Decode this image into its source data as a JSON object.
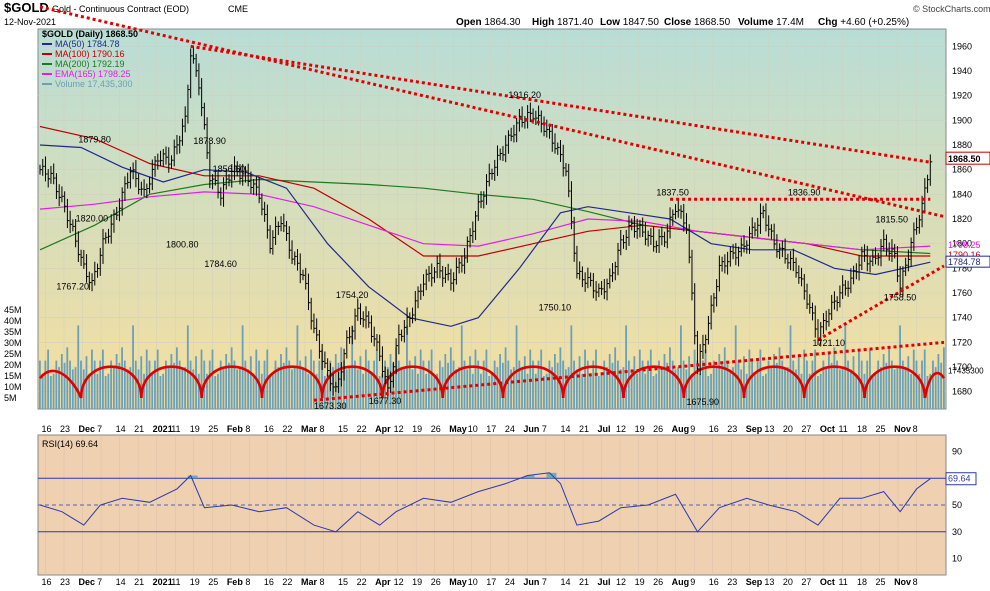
{
  "header": {
    "symbol": "$GOLD",
    "name": "Gold - Continuous Contract (EOD)",
    "exchange": "CME",
    "date": "12-Nov-2021",
    "open_label": "Open",
    "open": "1864.30",
    "high_label": "High",
    "high": "1871.40",
    "low_label": "Low",
    "low": "1847.50",
    "close_label": "Close",
    "close": "1868.50",
    "volume_label": "Volume",
    "volume": "17.4M",
    "chg_label": "Chg",
    "chg": "+4.60 (+0.25%)",
    "watermark": "© StockCharts.com"
  },
  "legend": [
    {
      "text": "$GOLD (Daily) 1868.50",
      "color": "#000000"
    },
    {
      "text": "MA(50) 1784.78",
      "color": "#1f2a8a"
    },
    {
      "text": "MA(100) 1790.16",
      "color": "#c00000"
    },
    {
      "text": "MA(200) 1792.19",
      "color": "#1f7a1f"
    },
    {
      "text": "EMA(165) 1798.25",
      "color": "#e020e0"
    },
    {
      "text": "Volume 17,435,300",
      "color": "#6aa0b8"
    }
  ],
  "rsi_legend": "RSI(14) 69.64",
  "x_tick_labels": [
    "16",
    "23",
    "Dec",
    "7",
    "14",
    "21",
    "2021",
    "11",
    "19",
    "25",
    "Feb",
    "8",
    "16",
    "22",
    "Mar",
    "8",
    "15",
    "22",
    "Apr",
    "12",
    "19",
    "26",
    "May",
    "10",
    "17",
    "24",
    "Jun",
    "7",
    "14",
    "21",
    "Jul",
    "12",
    "19",
    "26",
    "Aug",
    "9",
    "16",
    "23",
    "Sep",
    "13",
    "20",
    "27",
    "Oct",
    "11",
    "18",
    "25",
    "Nov",
    "8"
  ],
  "price_axis": [
    1960,
    1940,
    1920,
    1900,
    1880,
    1860,
    1840,
    1820,
    1800,
    1780,
    1760,
    1740,
    1720,
    1700,
    1680
  ],
  "volume_axis": [
    "45M",
    "40M",
    "35M",
    "30M",
    "25M",
    "20M",
    "15M",
    "10M",
    "5M"
  ],
  "rsi_axis": [
    90,
    70,
    50,
    30,
    10
  ],
  "right_labels": {
    "price": "1868.50",
    "ema": "1798.25",
    "ma100": "1790.16",
    "ma50": "1784.78",
    "vol": "17435300"
  },
  "rsi_value_label": "69.64",
  "colors": {
    "price_bg_top": "#b8ddd6",
    "price_bg_bottom": "#f7df9e",
    "rsi_bg": "#efd1b2",
    "bars": "#000000",
    "trend": "#e00000",
    "volume": "#6aa0b8",
    "rsi_line": "#2b3ba8",
    "rsi_fill": "#5aa0b0"
  },
  "chart_data": {
    "type": "line",
    "title": "$GOLD Gold - Continuous Contract (EOD) CME",
    "ylim": [
      1670,
      1970
    ],
    "annotations": [
      {
        "label": "1879.80",
        "value": 1879.8
      },
      {
        "label": "1820.00",
        "value": 1820.0
      },
      {
        "label": "1767.20",
        "value": 1767.2
      },
      {
        "label": "1878.90",
        "value": 1878.9
      },
      {
        "label": "1856.60",
        "value": 1856.6
      },
      {
        "label": "1800.80",
        "value": 1800.8
      },
      {
        "label": "1784.60",
        "value": 1784.6
      },
      {
        "label": "1754.20",
        "value": 1754.2
      },
      {
        "label": "1673.30",
        "value": 1673.3
      },
      {
        "label": "1677.30",
        "value": 1677.3
      },
      {
        "label": "1916.20",
        "value": 1916.2
      },
      {
        "label": "1750.10",
        "value": 1750.1
      },
      {
        "label": "1837.50",
        "value": 1837.5
      },
      {
        "label": "1675.90",
        "value": 1675.9
      },
      {
        "label": "1836.90",
        "value": 1836.9
      },
      {
        "label": "1721.10",
        "value": 1721.1
      },
      {
        "label": "1815.50",
        "value": 1815.5
      },
      {
        "label": "1758.50",
        "value": 1758.5
      }
    ],
    "close_path": [
      {
        "x": 0,
        "y": 1860
      },
      {
        "x": 4,
        "y": 1855
      },
      {
        "x": 8,
        "y": 1835
      },
      {
        "x": 12,
        "y": 1810
      },
      {
        "x": 16,
        "y": 1780
      },
      {
        "x": 19,
        "y": 1767
      },
      {
        "x": 23,
        "y": 1800
      },
      {
        "x": 28,
        "y": 1825
      },
      {
        "x": 33,
        "y": 1860
      },
      {
        "x": 38,
        "y": 1840
      },
      {
        "x": 43,
        "y": 1870
      },
      {
        "x": 48,
        "y": 1868
      },
      {
        "x": 53,
        "y": 1900
      },
      {
        "x": 55,
        "y": 1955
      },
      {
        "x": 58,
        "y": 1930
      },
      {
        "x": 62,
        "y": 1855
      },
      {
        "x": 66,
        "y": 1840
      },
      {
        "x": 70,
        "y": 1860
      },
      {
        "x": 75,
        "y": 1855
      },
      {
        "x": 80,
        "y": 1840
      },
      {
        "x": 84,
        "y": 1800
      },
      {
        "x": 88,
        "y": 1820
      },
      {
        "x": 92,
        "y": 1790
      },
      {
        "x": 96,
        "y": 1775
      },
      {
        "x": 100,
        "y": 1730
      },
      {
        "x": 104,
        "y": 1700
      },
      {
        "x": 108,
        "y": 1680
      },
      {
        "x": 112,
        "y": 1720
      },
      {
        "x": 116,
        "y": 1745
      },
      {
        "x": 120,
        "y": 1735
      },
      {
        "x": 124,
        "y": 1710
      },
      {
        "x": 127,
        "y": 1680
      },
      {
        "x": 131,
        "y": 1725
      },
      {
        "x": 135,
        "y": 1740
      },
      {
        "x": 140,
        "y": 1770
      },
      {
        "x": 145,
        "y": 1780
      },
      {
        "x": 150,
        "y": 1770
      },
      {
        "x": 155,
        "y": 1790
      },
      {
        "x": 160,
        "y": 1830
      },
      {
        "x": 165,
        "y": 1860
      },
      {
        "x": 170,
        "y": 1880
      },
      {
        "x": 175,
        "y": 1900
      },
      {
        "x": 180,
        "y": 1905
      },
      {
        "x": 184,
        "y": 1895
      },
      {
        "x": 188,
        "y": 1880
      },
      {
        "x": 192,
        "y": 1860
      },
      {
        "x": 196,
        "y": 1775
      },
      {
        "x": 200,
        "y": 1770
      },
      {
        "x": 204,
        "y": 1760
      },
      {
        "x": 208,
        "y": 1770
      },
      {
        "x": 212,
        "y": 1800
      },
      {
        "x": 216,
        "y": 1815
      },
      {
        "x": 220,
        "y": 1810
      },
      {
        "x": 224,
        "y": 1800
      },
      {
        "x": 228,
        "y": 1805
      },
      {
        "x": 232,
        "y": 1830
      },
      {
        "x": 236,
        "y": 1815
      },
      {
        "x": 240,
        "y": 1700
      },
      {
        "x": 244,
        "y": 1735
      },
      {
        "x": 248,
        "y": 1780
      },
      {
        "x": 252,
        "y": 1790
      },
      {
        "x": 256,
        "y": 1795
      },
      {
        "x": 260,
        "y": 1810
      },
      {
        "x": 264,
        "y": 1825
      },
      {
        "x": 268,
        "y": 1800
      },
      {
        "x": 272,
        "y": 1790
      },
      {
        "x": 276,
        "y": 1780
      },
      {
        "x": 280,
        "y": 1755
      },
      {
        "x": 284,
        "y": 1725
      },
      {
        "x": 288,
        "y": 1745
      },
      {
        "x": 292,
        "y": 1760
      },
      {
        "x": 296,
        "y": 1770
      },
      {
        "x": 300,
        "y": 1790
      },
      {
        "x": 304,
        "y": 1785
      },
      {
        "x": 308,
        "y": 1800
      },
      {
        "x": 312,
        "y": 1790
      },
      {
        "x": 314,
        "y": 1765
      },
      {
        "x": 318,
        "y": 1800
      },
      {
        "x": 322,
        "y": 1830
      },
      {
        "x": 325,
        "y": 1868
      }
    ],
    "ma50_path": [
      {
        "x": 0,
        "y": 1880
      },
      {
        "x": 15,
        "y": 1878
      },
      {
        "x": 30,
        "y": 1862
      },
      {
        "x": 45,
        "y": 1850
      },
      {
        "x": 60,
        "y": 1860
      },
      {
        "x": 75,
        "y": 1858
      },
      {
        "x": 90,
        "y": 1845
      },
      {
        "x": 105,
        "y": 1800
      },
      {
        "x": 120,
        "y": 1765
      },
      {
        "x": 135,
        "y": 1740
      },
      {
        "x": 150,
        "y": 1733
      },
      {
        "x": 160,
        "y": 1740
      },
      {
        "x": 175,
        "y": 1780
      },
      {
        "x": 190,
        "y": 1825
      },
      {
        "x": 200,
        "y": 1830
      },
      {
        "x": 215,
        "y": 1825
      },
      {
        "x": 230,
        "y": 1820
      },
      {
        "x": 245,
        "y": 1800
      },
      {
        "x": 260,
        "y": 1795
      },
      {
        "x": 275,
        "y": 1795
      },
      {
        "x": 290,
        "y": 1780
      },
      {
        "x": 305,
        "y": 1775
      },
      {
        "x": 325,
        "y": 1785
      }
    ],
    "ma100_path": [
      {
        "x": 0,
        "y": 1895
      },
      {
        "x": 20,
        "y": 1885
      },
      {
        "x": 40,
        "y": 1865
      },
      {
        "x": 60,
        "y": 1855
      },
      {
        "x": 80,
        "y": 1855
      },
      {
        "x": 100,
        "y": 1845
      },
      {
        "x": 120,
        "y": 1820
      },
      {
        "x": 140,
        "y": 1790
      },
      {
        "x": 160,
        "y": 1790
      },
      {
        "x": 180,
        "y": 1800
      },
      {
        "x": 200,
        "y": 1810
      },
      {
        "x": 220,
        "y": 1815
      },
      {
        "x": 240,
        "y": 1810
      },
      {
        "x": 260,
        "y": 1805
      },
      {
        "x": 280,
        "y": 1800
      },
      {
        "x": 300,
        "y": 1790
      },
      {
        "x": 325,
        "y": 1790
      }
    ],
    "ma200_path": [
      {
        "x": 0,
        "y": 1795
      },
      {
        "x": 20,
        "y": 1815
      },
      {
        "x": 40,
        "y": 1840
      },
      {
        "x": 60,
        "y": 1848
      },
      {
        "x": 80,
        "y": 1852
      },
      {
        "x": 100,
        "y": 1850
      },
      {
        "x": 120,
        "y": 1848
      },
      {
        "x": 140,
        "y": 1845
      },
      {
        "x": 160,
        "y": 1840
      },
      {
        "x": 180,
        "y": 1836
      },
      {
        "x": 200,
        "y": 1826
      },
      {
        "x": 220,
        "y": 1815
      },
      {
        "x": 240,
        "y": 1810
      },
      {
        "x": 260,
        "y": 1805
      },
      {
        "x": 280,
        "y": 1800
      },
      {
        "x": 300,
        "y": 1795
      },
      {
        "x": 325,
        "y": 1792
      }
    ],
    "ema165_path": [
      {
        "x": 0,
        "y": 1828
      },
      {
        "x": 20,
        "y": 1832
      },
      {
        "x": 40,
        "y": 1838
      },
      {
        "x": 60,
        "y": 1842
      },
      {
        "x": 80,
        "y": 1840
      },
      {
        "x": 100,
        "y": 1830
      },
      {
        "x": 120,
        "y": 1815
      },
      {
        "x": 140,
        "y": 1800
      },
      {
        "x": 160,
        "y": 1798
      },
      {
        "x": 180,
        "y": 1808
      },
      {
        "x": 200,
        "y": 1820
      },
      {
        "x": 220,
        "y": 1818
      },
      {
        "x": 240,
        "y": 1810
      },
      {
        "x": 260,
        "y": 1805
      },
      {
        "x": 280,
        "y": 1800
      },
      {
        "x": 300,
        "y": 1795
      },
      {
        "x": 325,
        "y": 1798
      }
    ],
    "trendlines": [
      {
        "from": {
          "x": 55,
          "y": 1960
        },
        "to": {
          "x": 325,
          "y": 1866
        }
      },
      {
        "from": {
          "x": 0,
          "y": 1992
        },
        "to": {
          "x": 330,
          "y": 1822
        }
      },
      {
        "from": {
          "x": 230,
          "y": 1836
        },
        "to": {
          "x": 325,
          "y": 1836
        }
      },
      {
        "from": {
          "x": 284,
          "y": 1722
        },
        "to": {
          "x": 330,
          "y": 1782
        }
      },
      {
        "from": {
          "x": 100,
          "y": 1673
        },
        "to": {
          "x": 330,
          "y": 1720
        }
      }
    ],
    "volume": {
      "ylim": [
        0,
        50
      ],
      "cycle_lows_x": [
        15,
        37,
        59,
        81,
        103,
        125,
        147,
        169,
        191,
        213,
        235,
        257,
        279,
        301,
        323
      ],
      "bars": [
        22,
        14,
        18,
        26,
        12,
        16,
        20,
        15,
        24,
        18,
        28,
        20,
        14,
        18,
        35,
        22,
        16,
        20,
        15,
        24
      ]
    },
    "rsi": {
      "ylim": [
        0,
        100
      ],
      "levels": [
        70,
        50,
        30
      ],
      "values": [
        {
          "x": 0,
          "y": 50
        },
        {
          "x": 8,
          "y": 45
        },
        {
          "x": 16,
          "y": 35
        },
        {
          "x": 22,
          "y": 50
        },
        {
          "x": 30,
          "y": 55
        },
        {
          "x": 40,
          "y": 52
        },
        {
          "x": 50,
          "y": 62
        },
        {
          "x": 55,
          "y": 72
        },
        {
          "x": 60,
          "y": 48
        },
        {
          "x": 70,
          "y": 50
        },
        {
          "x": 80,
          "y": 45
        },
        {
          "x": 90,
          "y": 48
        },
        {
          "x": 100,
          "y": 35
        },
        {
          "x": 108,
          "y": 30
        },
        {
          "x": 116,
          "y": 45
        },
        {
          "x": 124,
          "y": 35
        },
        {
          "x": 130,
          "y": 45
        },
        {
          "x": 140,
          "y": 55
        },
        {
          "x": 150,
          "y": 52
        },
        {
          "x": 160,
          "y": 60
        },
        {
          "x": 170,
          "y": 66
        },
        {
          "x": 178,
          "y": 72
        },
        {
          "x": 186,
          "y": 74
        },
        {
          "x": 190,
          "y": 66
        },
        {
          "x": 196,
          "y": 35
        },
        {
          "x": 204,
          "y": 38
        },
        {
          "x": 212,
          "y": 48
        },
        {
          "x": 222,
          "y": 50
        },
        {
          "x": 232,
          "y": 58
        },
        {
          "x": 240,
          "y": 30
        },
        {
          "x": 248,
          "y": 48
        },
        {
          "x": 258,
          "y": 55
        },
        {
          "x": 266,
          "y": 50
        },
        {
          "x": 276,
          "y": 45
        },
        {
          "x": 284,
          "y": 35
        },
        {
          "x": 292,
          "y": 55
        },
        {
          "x": 300,
          "y": 55
        },
        {
          "x": 308,
          "y": 60
        },
        {
          "x": 314,
          "y": 45
        },
        {
          "x": 320,
          "y": 62
        },
        {
          "x": 325,
          "y": 69.6
        }
      ]
    }
  }
}
